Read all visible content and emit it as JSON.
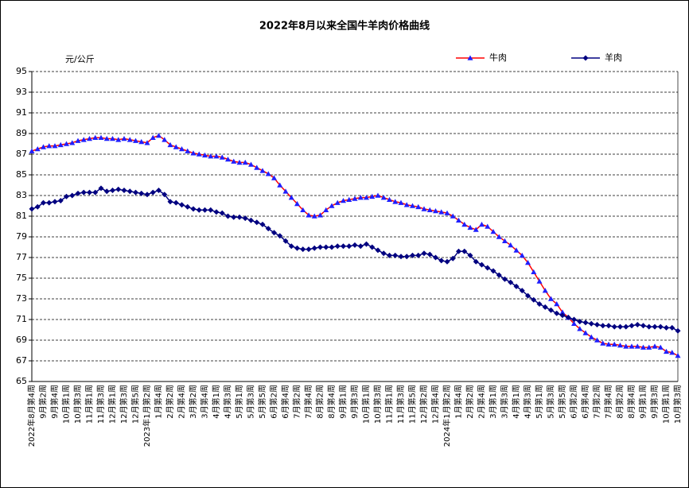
{
  "chart_data": {
    "type": "line",
    "title": "2022年8月以来全国牛羊肉价格曲线",
    "y_label": "元/公斤",
    "categories": [
      "2022年8月第4周",
      null,
      "9月第2周",
      null,
      "9月第4周",
      null,
      "10月第1周",
      null,
      "10月第3周",
      null,
      "11月第1周",
      null,
      "11月第3周",
      null,
      "12月第1周",
      null,
      "12月第3周",
      null,
      "12月第5周",
      null,
      "2023年1月第2周",
      null,
      "1月第4周",
      null,
      "2月第2周",
      null,
      "2月第4周",
      null,
      "3月第2周",
      null,
      "3月第4周",
      null,
      "4月第1周",
      null,
      "4月第3周",
      null,
      "5月第1周",
      null,
      "5月第3周",
      null,
      "5月第5周",
      null,
      "6月第2周",
      null,
      "6月第4周",
      null,
      "7月第2周",
      null,
      "7月第4周",
      null,
      "8月第2周",
      null,
      "8月第4周",
      null,
      "9月第1周",
      null,
      "9月第3周",
      null,
      "10月第1周",
      null,
      "10月第3周",
      null,
      "11月第1周",
      null,
      "11月第3周",
      null,
      "11月第5周",
      null,
      "12月第2周",
      null,
      "12月第4周",
      null,
      "2024年1月第2周",
      null,
      "1月第4周",
      null,
      "2月第2周",
      null,
      "2月第4周",
      null,
      "3月第1周",
      null,
      "3月第3周",
      null,
      "4月第1周",
      null,
      "4月第3周",
      null,
      "5月第1周",
      null,
      "5月第3周",
      null,
      "5月第5周",
      null,
      "6月第2周",
      null,
      "6月第4周",
      null,
      "7月第2周",
      null,
      "7月第4周",
      null,
      "8月第2周",
      null,
      "8月第4周",
      null,
      "9月第1周",
      null,
      "9月第3周",
      null,
      "10月第1周",
      null,
      "10月第3周"
    ],
    "series": [
      {
        "name": "牛肉",
        "color": "#ff0000",
        "marker_color": "#1f1fff",
        "marker": "triangle",
        "values": [
          87.3,
          87.5,
          87.7,
          87.8,
          87.8,
          87.9,
          88.0,
          88.1,
          88.3,
          88.4,
          88.5,
          88.6,
          88.6,
          88.5,
          88.5,
          88.4,
          88.5,
          88.4,
          88.3,
          88.2,
          88.1,
          88.6,
          88.8,
          88.4,
          87.9,
          87.7,
          87.5,
          87.3,
          87.1,
          87.0,
          86.9,
          86.8,
          86.8,
          86.7,
          86.5,
          86.3,
          86.2,
          86.2,
          86.0,
          85.7,
          85.4,
          85.1,
          84.7,
          84.0,
          83.4,
          82.8,
          82.2,
          81.6,
          81.1,
          81.0,
          81.1,
          81.6,
          82.0,
          82.3,
          82.5,
          82.6,
          82.7,
          82.8,
          82.8,
          82.9,
          83.0,
          82.8,
          82.6,
          82.4,
          82.3,
          82.1,
          82.0,
          81.9,
          81.7,
          81.6,
          81.5,
          81.4,
          81.3,
          81.0,
          80.6,
          80.2,
          79.9,
          79.7,
          80.2,
          80.0,
          79.5,
          79.0,
          78.6,
          78.2,
          77.7,
          77.2,
          76.5,
          75.6,
          74.7,
          73.8,
          73.0,
          72.5,
          71.7,
          71.2,
          70.6,
          70.1,
          69.7,
          69.3,
          69.0,
          68.7,
          68.6,
          68.6,
          68.5,
          68.4,
          68.4,
          68.4,
          68.3,
          68.3,
          68.4,
          68.3,
          67.9,
          67.8,
          67.5
        ]
      },
      {
        "name": "羊肉",
        "color": "#000080",
        "marker_color": "#000080",
        "marker": "diamond",
        "values": [
          81.7,
          81.9,
          82.3,
          82.3,
          82.4,
          82.5,
          82.9,
          83.0,
          83.2,
          83.3,
          83.3,
          83.3,
          83.7,
          83.4,
          83.5,
          83.6,
          83.5,
          83.4,
          83.3,
          83.2,
          83.1,
          83.3,
          83.5,
          83.1,
          82.4,
          82.3,
          82.1,
          81.9,
          81.7,
          81.6,
          81.6,
          81.6,
          81.4,
          81.3,
          81.0,
          80.9,
          80.9,
          80.8,
          80.6,
          80.4,
          80.2,
          79.8,
          79.4,
          79.1,
          78.6,
          78.1,
          77.9,
          77.8,
          77.8,
          77.9,
          78.0,
          78.0,
          78.0,
          78.1,
          78.1,
          78.1,
          78.2,
          78.1,
          78.3,
          78.0,
          77.7,
          77.4,
          77.2,
          77.2,
          77.1,
          77.1,
          77.2,
          77.2,
          77.4,
          77.3,
          77.0,
          76.7,
          76.6,
          76.9,
          77.6,
          77.6,
          77.2,
          76.6,
          76.3,
          76.0,
          75.7,
          75.3,
          74.9,
          74.6,
          74.2,
          73.8,
          73.3,
          72.9,
          72.5,
          72.2,
          71.9,
          71.6,
          71.4,
          71.2,
          71.0,
          70.8,
          70.7,
          70.6,
          70.5,
          70.4,
          70.4,
          70.3,
          70.3,
          70.3,
          70.4,
          70.5,
          70.4,
          70.3,
          70.3,
          70.3,
          70.2,
          70.2,
          69.9
        ]
      }
    ],
    "ylim": [
      65,
      95
    ],
    "yticks": [
      65,
      67,
      69,
      71,
      73,
      75,
      77,
      79,
      81,
      83,
      85,
      87,
      89,
      91,
      93,
      95
    ],
    "grid": true,
    "legend": "top-right"
  }
}
